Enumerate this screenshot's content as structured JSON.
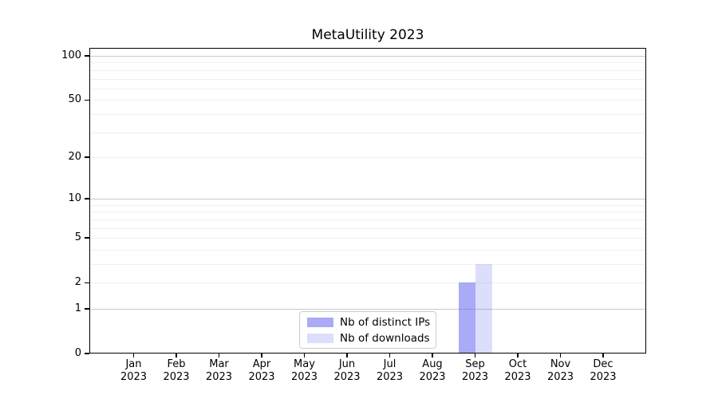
{
  "title": "MetaUtility 2023",
  "chart_data": {
    "type": "bar",
    "categories": [
      "Jan 2023",
      "Feb 2023",
      "Mar 2023",
      "Apr 2023",
      "May 2023",
      "Jun 2023",
      "Jul 2023",
      "Aug 2023",
      "Sep 2023",
      "Oct 2023",
      "Nov 2023",
      "Dec 2023"
    ],
    "series": [
      {
        "name": "Nb of distinct IPs",
        "color": "rgba(101,101,240,0.55)",
        "values": [
          0,
          0,
          0,
          0,
          0,
          0,
          0,
          0,
          2,
          0,
          0,
          0
        ]
      },
      {
        "name": "Nb of downloads",
        "color": "rgba(101,101,240,0.22)",
        "values": [
          0,
          0,
          0,
          0,
          0,
          0,
          0,
          0,
          3,
          0,
          0,
          0
        ]
      }
    ],
    "yscale": "log1p",
    "y_ticks": [
      0,
      1,
      2,
      5,
      10,
      20,
      50,
      100
    ],
    "y_major_gridlines": [
      1,
      10,
      100
    ],
    "y_minor_gridlines": [
      2,
      3,
      4,
      5,
      6,
      7,
      8,
      9,
      20,
      30,
      40,
      50,
      60,
      70,
      80,
      90
    ],
    "ylim": [
      0,
      116
    ],
    "xlabel": "",
    "ylabel": "",
    "grid": "horizontal",
    "legend_position": "lower center"
  },
  "colors": {
    "major_grid": "#c9c9c9",
    "minor_grid": "#f0f0f0",
    "axis": "#000000",
    "legend_border": "#cccccc"
  }
}
